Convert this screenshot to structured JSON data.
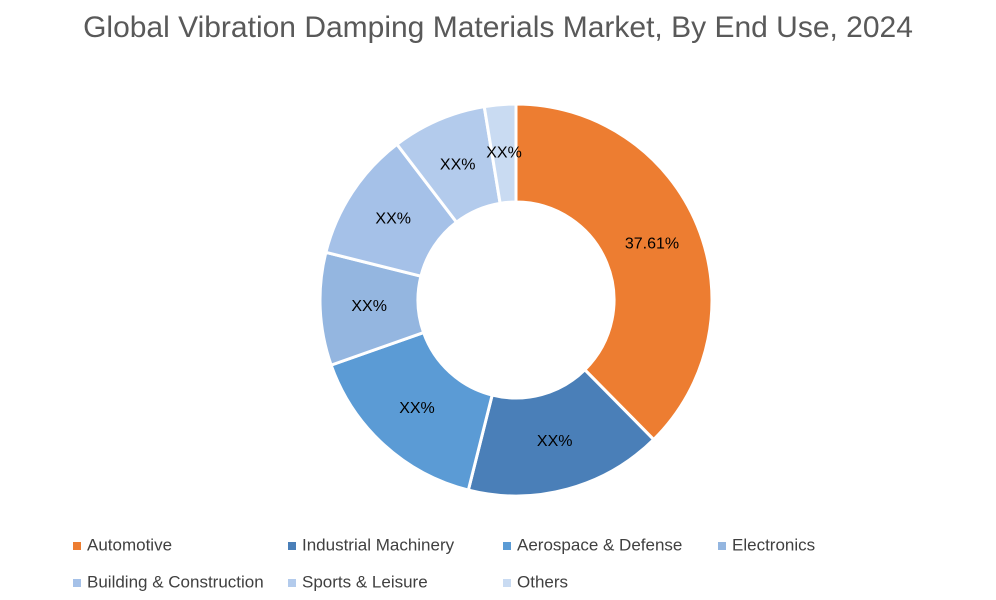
{
  "chart_data": {
    "type": "donut",
    "title": "Global Vibration Damping Materials Market, By End Use, 2024",
    "categories": [
      "Automotive",
      "Industrial Machinery",
      "Aerospace & Defense",
      "Electronics",
      "Building & Construction",
      "Sports & Leisure",
      "Others"
    ],
    "values": [
      37.61,
      16.3,
      15.7,
      9.3,
      10.7,
      7.8,
      2.59
    ],
    "value_labels": [
      "37.61%",
      "XX%",
      "XX%",
      "XX%",
      "XX%",
      "XX%",
      "XX%"
    ],
    "colors": [
      "#ed7d31",
      "#4a7fb8",
      "#5b9bd5",
      "#94b6e0",
      "#a5c1e8",
      "#b3cbec",
      "#c9dbf2"
    ],
    "legend": "bottom"
  }
}
